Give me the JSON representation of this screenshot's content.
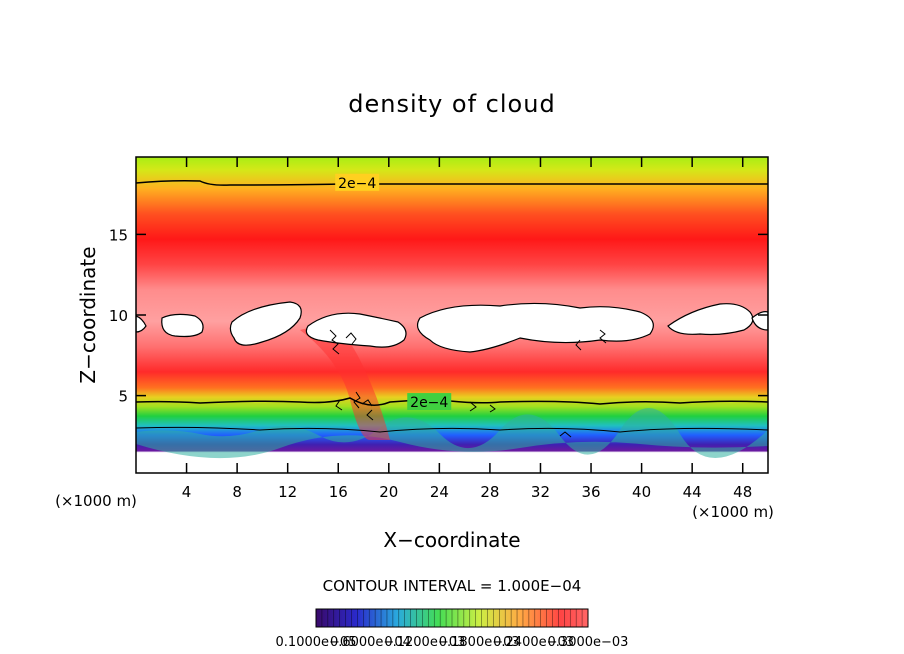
{
  "chart_data": {
    "type": "heatmap",
    "title": "density of cloud",
    "xlabel": "X−coordinate",
    "ylabel": "Z−coordinate",
    "x_unit_left": "(×1000 m)",
    "x_unit_right": "(×1000 m)",
    "xlim": [
      0,
      50
    ],
    "ylim": [
      0.2,
      19.8
    ],
    "x_ticks": [
      4,
      8,
      12,
      16,
      20,
      24,
      28,
      32,
      36,
      40,
      44,
      48
    ],
    "y_ticks": [
      5,
      10,
      15
    ],
    "contour_interval_label": "CONTOUR INTERVAL = 1.000E−04",
    "contour_labels": [
      {
        "text": "2e−4",
        "x": 17.5,
        "z": 18.2
      },
      {
        "text": "2e−4",
        "x": 23.2,
        "z": 4.6
      }
    ],
    "colorbar_labels": [
      "0.1000e−05",
      "0.6000e−04",
      "0.1200e−03",
      "0.1800e−03",
      "0.2400e−03",
      "0.3000e−03"
    ],
    "colors": {
      "low": "#3a0a8a",
      "mid": "#22cc22",
      "high": "#ff1a1a",
      "void": "#ffffff"
    }
  }
}
